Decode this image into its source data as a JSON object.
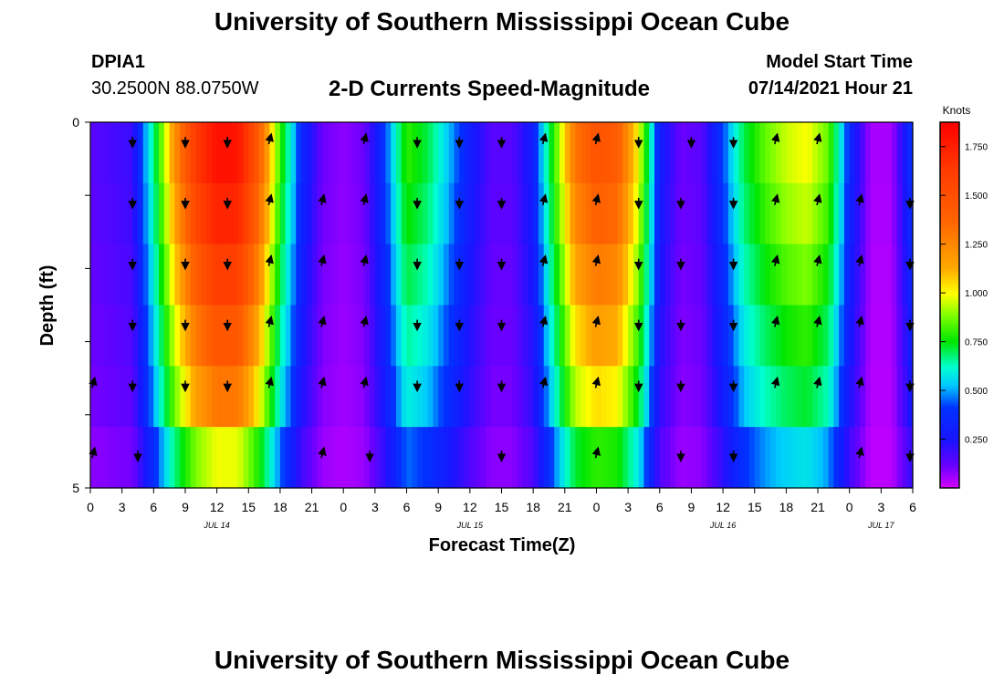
{
  "header": {
    "title": "University of Southern Mississippi Ocean Cube",
    "station_id": "DPIA1",
    "station_coords": "30.2500N  88.0750W",
    "chart_title": "2-D Currents Speed-Magnitude",
    "model_start_label": "Model Start Time",
    "model_start_value": "07/14/2021 Hour 21"
  },
  "footer": {
    "title": "University of Southern Mississippi Ocean Cube"
  },
  "chart_data": {
    "type": "heatmap",
    "title": "2-D Currents Speed-Magnitude",
    "xlabel": "Forecast Time(Z)",
    "ylabel": "Depth (ft)",
    "x_hours_from_start": [
      0,
      78
    ],
    "x_ticks": [
      {
        "h": 0,
        "label": "0"
      },
      {
        "h": 3,
        "label": "3"
      },
      {
        "h": 6,
        "label": "6"
      },
      {
        "h": 9,
        "label": "9"
      },
      {
        "h": 12,
        "label": "12"
      },
      {
        "h": 15,
        "label": "15"
      },
      {
        "h": 18,
        "label": "18"
      },
      {
        "h": 21,
        "label": "21"
      },
      {
        "h": 24,
        "label": "0"
      },
      {
        "h": 27,
        "label": "3"
      },
      {
        "h": 30,
        "label": "6"
      },
      {
        "h": 33,
        "label": "9"
      },
      {
        "h": 36,
        "label": "12"
      },
      {
        "h": 39,
        "label": "15"
      },
      {
        "h": 42,
        "label": "18"
      },
      {
        "h": 45,
        "label": "21"
      },
      {
        "h": 48,
        "label": "0"
      },
      {
        "h": 51,
        "label": "3"
      },
      {
        "h": 54,
        "label": "6"
      },
      {
        "h": 57,
        "label": "9"
      },
      {
        "h": 60,
        "label": "12"
      },
      {
        "h": 63,
        "label": "15"
      },
      {
        "h": 66,
        "label": "18"
      },
      {
        "h": 69,
        "label": "21"
      },
      {
        "h": 72,
        "label": "0"
      },
      {
        "h": 75,
        "label": "3"
      },
      {
        "h": 78,
        "label": "6"
      }
    ],
    "date_labels": [
      {
        "h": 12,
        "label": "JUL 14"
      },
      {
        "h": 36,
        "label": "JUL 15"
      },
      {
        "h": 60,
        "label": "JUL 16"
      },
      {
        "h": 75,
        "label": "JUL 17"
      }
    ],
    "y_range": [
      0,
      5
    ],
    "y_ticks": [
      0,
      1,
      2,
      3,
      4,
      5
    ],
    "y_tick_labels": {
      "0": "0",
      "5": "5"
    },
    "colorbar": {
      "unit": "Knots",
      "range": [
        0.0,
        1.875
      ],
      "ticks": [
        0.25,
        0.5,
        0.75,
        1.0,
        1.25,
        1.5,
        1.75
      ],
      "tick_labels": [
        "0.250",
        "0.500",
        "0.750",
        "1.000",
        "1.250",
        "1.500",
        "1.750"
      ]
    },
    "speed_profile_knots": [
      {
        "h": 0,
        "v": 0.15
      },
      {
        "h": 4,
        "v": 0.2
      },
      {
        "h": 6,
        "v": 0.65
      },
      {
        "h": 8,
        "v": 1.2
      },
      {
        "h": 10,
        "v": 1.6
      },
      {
        "h": 12,
        "v": 1.8
      },
      {
        "h": 14,
        "v": 1.78
      },
      {
        "h": 16,
        "v": 1.4
      },
      {
        "h": 18,
        "v": 0.8
      },
      {
        "h": 20,
        "v": 0.35
      },
      {
        "h": 22,
        "v": 0.12
      },
      {
        "h": 24,
        "v": 0.08
      },
      {
        "h": 26,
        "v": 0.12
      },
      {
        "h": 28,
        "v": 0.4
      },
      {
        "h": 30,
        "v": 0.8
      },
      {
        "h": 32,
        "v": 0.7
      },
      {
        "h": 34,
        "v": 0.5
      },
      {
        "h": 36,
        "v": 0.3
      },
      {
        "h": 38,
        "v": 0.15
      },
      {
        "h": 40,
        "v": 0.15
      },
      {
        "h": 42,
        "v": 0.3
      },
      {
        "h": 44,
        "v": 0.8
      },
      {
        "h": 46,
        "v": 1.3
      },
      {
        "h": 48,
        "v": 1.45
      },
      {
        "h": 50,
        "v": 1.4
      },
      {
        "h": 52,
        "v": 1.0
      },
      {
        "h": 54,
        "v": 0.3
      },
      {
        "h": 56,
        "v": 0.12
      },
      {
        "h": 58,
        "v": 0.15
      },
      {
        "h": 60,
        "v": 0.4
      },
      {
        "h": 62,
        "v": 0.7
      },
      {
        "h": 64,
        "v": 0.85
      },
      {
        "h": 66,
        "v": 0.95
      },
      {
        "h": 68,
        "v": 1.0
      },
      {
        "h": 70,
        "v": 0.85
      },
      {
        "h": 72,
        "v": 0.35
      },
      {
        "h": 74,
        "v": 0.05
      },
      {
        "h": 76,
        "v": 0.05
      },
      {
        "h": 78,
        "v": 0.4
      }
    ],
    "depth_factor": [
      1.0,
      0.95,
      0.88,
      0.8,
      0.72,
      0.55
    ],
    "arrow_rows": [
      {
        "row": 0,
        "h": [
          4,
          9,
          13,
          17,
          26,
          31,
          35,
          39,
          43,
          48,
          52,
          57,
          61,
          65,
          69
        ]
      },
      {
        "row": 1,
        "h": [
          4,
          9,
          13,
          17,
          22,
          26,
          31,
          35,
          39,
          43,
          48,
          52,
          56,
          61,
          65,
          69,
          73,
          78
        ]
      },
      {
        "row": 2,
        "h": [
          4,
          9,
          13,
          17,
          22,
          26,
          31,
          35,
          39,
          43,
          48,
          52,
          56,
          61,
          65,
          69,
          73,
          78
        ]
      },
      {
        "row": 3,
        "h": [
          4,
          9,
          13,
          17,
          22,
          26,
          31,
          35,
          39,
          43,
          48,
          52,
          56,
          61,
          65,
          69,
          73,
          78
        ]
      },
      {
        "row": 4,
        "h": [
          0,
          4,
          9,
          13,
          17,
          22,
          26,
          31,
          35,
          39,
          43,
          48,
          52,
          56,
          61,
          65,
          69,
          73,
          78
        ]
      },
      {
        "row": 5,
        "h": [
          0,
          4.5,
          22,
          26.5,
          39,
          48,
          56,
          61,
          73,
          78
        ]
      }
    ]
  }
}
